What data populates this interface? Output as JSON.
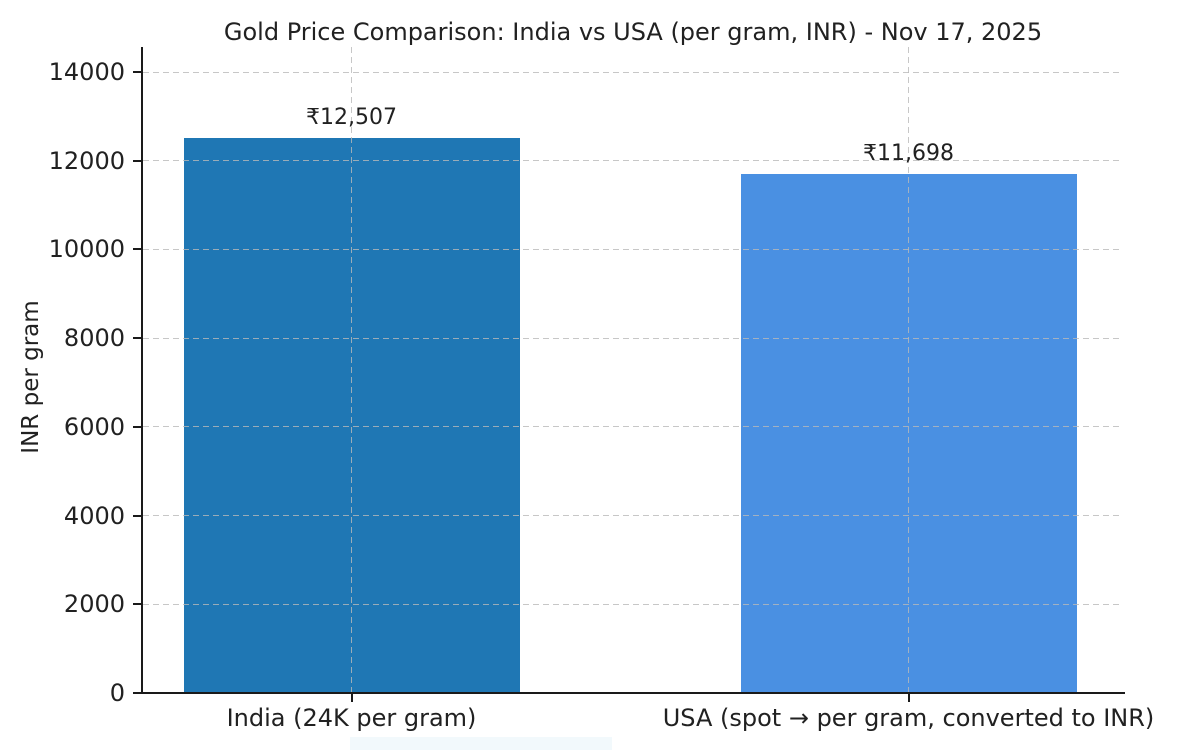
{
  "figure": {
    "background": "#ffffff",
    "text_color": "#212121",
    "spine_color": "#1a1a1a"
  },
  "chart_data": {
    "type": "bar",
    "title": "Gold Price Comparison: India vs USA (per gram, INR) - Nov 17, 2025",
    "xlabel": "",
    "ylabel": "INR per gram",
    "categories": [
      "India (24K per gram)",
      "USA (spot → per gram, converted to INR)"
    ],
    "values": [
      12507,
      11698
    ],
    "bar_labels": [
      "₹12,507",
      "₹11,698"
    ],
    "bar_colors": [
      "#1f77b4",
      "#4a90e2"
    ],
    "ylim": [
      0,
      14000
    ],
    "yticks": [
      0,
      2000,
      4000,
      6000,
      8000,
      10000,
      12000,
      14000
    ],
    "ytick_labels": [
      "0",
      "2000",
      "4000",
      "6000",
      "8000",
      "10000",
      "12000",
      "14000"
    ],
    "grid": {
      "visible": true,
      "style": "dashed",
      "axes": "both",
      "color": "#c8c8c8",
      "drawn_above_bars": true
    },
    "legend": "none"
  }
}
